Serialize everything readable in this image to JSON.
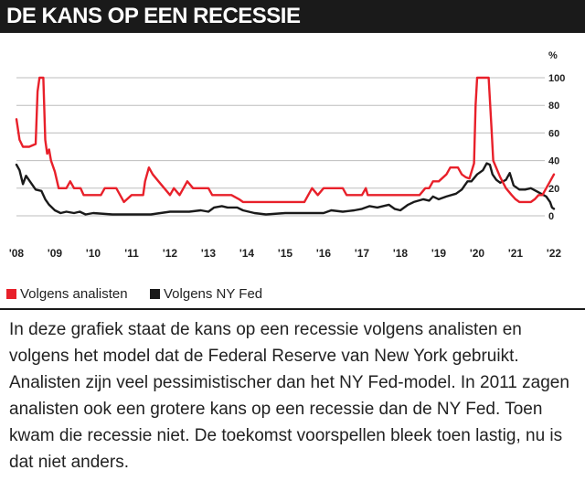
{
  "header": {
    "title": "DE KANS OP EEN RECESSIE"
  },
  "chart_data": {
    "type": "line",
    "title": "DE KANS OP EEN RECESSIE",
    "ylabel": "%",
    "ylim": [
      0,
      100
    ],
    "xlim": [
      2008,
      2022
    ],
    "grid": true,
    "y_ticks": [
      "0",
      "20",
      "40",
      "60",
      "80",
      "100"
    ],
    "x_ticks": [
      "'08",
      "'09",
      "'10",
      "'11",
      "'12",
      "'13",
      "'14",
      "'15",
      "'16",
      "'17",
      "'18",
      "'19",
      "'20",
      "'21",
      "'22"
    ],
    "legend_position": "bottom-left",
    "series": [
      {
        "name": "Volgens analisten",
        "color": "#e8202a",
        "points": [
          [
            2008.0,
            70
          ],
          [
            2008.08,
            55
          ],
          [
            2008.17,
            50
          ],
          [
            2008.33,
            50
          ],
          [
            2008.5,
            52
          ],
          [
            2008.55,
            90
          ],
          [
            2008.6,
            100
          ],
          [
            2008.7,
            100
          ],
          [
            2008.75,
            55
          ],
          [
            2008.8,
            45
          ],
          [
            2008.85,
            48
          ],
          [
            2008.9,
            40
          ],
          [
            2009.0,
            32
          ],
          [
            2009.1,
            20
          ],
          [
            2009.3,
            20
          ],
          [
            2009.4,
            25
          ],
          [
            2009.5,
            20
          ],
          [
            2009.67,
            20
          ],
          [
            2009.75,
            15
          ],
          [
            2010.0,
            15
          ],
          [
            2010.2,
            15
          ],
          [
            2010.3,
            20
          ],
          [
            2010.6,
            20
          ],
          [
            2010.7,
            15
          ],
          [
            2010.8,
            10
          ],
          [
            2011.0,
            15
          ],
          [
            2011.3,
            15
          ],
          [
            2011.35,
            25
          ],
          [
            2011.45,
            35
          ],
          [
            2011.55,
            30
          ],
          [
            2011.7,
            25
          ],
          [
            2011.85,
            20
          ],
          [
            2012.0,
            15
          ],
          [
            2012.1,
            20
          ],
          [
            2012.25,
            15
          ],
          [
            2012.35,
            20
          ],
          [
            2012.45,
            25
          ],
          [
            2012.6,
            20
          ],
          [
            2013.0,
            20
          ],
          [
            2013.1,
            15
          ],
          [
            2013.4,
            15
          ],
          [
            2013.6,
            15
          ],
          [
            2013.8,
            12
          ],
          [
            2013.9,
            10
          ],
          [
            2014.5,
            10
          ],
          [
            2015.0,
            10
          ],
          [
            2015.25,
            10
          ],
          [
            2015.5,
            10
          ],
          [
            2015.6,
            15
          ],
          [
            2015.7,
            20
          ],
          [
            2015.85,
            15
          ],
          [
            2016.0,
            20
          ],
          [
            2016.2,
            20
          ],
          [
            2016.5,
            20
          ],
          [
            2016.6,
            15
          ],
          [
            2016.9,
            15
          ],
          [
            2017.0,
            15
          ],
          [
            2017.1,
            20
          ],
          [
            2017.15,
            15
          ],
          [
            2017.6,
            15
          ],
          [
            2018.0,
            15
          ],
          [
            2018.5,
            15
          ],
          [
            2018.65,
            20
          ],
          [
            2018.75,
            20
          ],
          [
            2018.85,
            25
          ],
          [
            2019.0,
            25
          ],
          [
            2019.2,
            30
          ],
          [
            2019.3,
            35
          ],
          [
            2019.5,
            35
          ],
          [
            2019.6,
            30
          ],
          [
            2019.7,
            28
          ],
          [
            2019.8,
            27
          ],
          [
            2019.92,
            38
          ],
          [
            2019.96,
            80
          ],
          [
            2020.0,
            100
          ],
          [
            2020.3,
            100
          ],
          [
            2020.38,
            60
          ],
          [
            2020.42,
            40
          ],
          [
            2020.6,
            28
          ],
          [
            2020.75,
            20
          ],
          [
            2020.9,
            15
          ],
          [
            2021.0,
            12
          ],
          [
            2021.1,
            10
          ],
          [
            2021.4,
            10
          ],
          [
            2021.5,
            12
          ],
          [
            2021.6,
            15
          ],
          [
            2021.7,
            15
          ],
          [
            2021.8,
            20
          ],
          [
            2021.9,
            25
          ],
          [
            2022.0,
            30
          ]
        ]
      },
      {
        "name": "Volgens NY Fed",
        "color": "#1a1a1a",
        "points": [
          [
            2008.0,
            37
          ],
          [
            2008.08,
            33
          ],
          [
            2008.17,
            23
          ],
          [
            2008.25,
            29
          ],
          [
            2008.35,
            25
          ],
          [
            2008.5,
            19
          ],
          [
            2008.65,
            18
          ],
          [
            2008.75,
            12
          ],
          [
            2008.85,
            8
          ],
          [
            2009.0,
            4
          ],
          [
            2009.15,
            2
          ],
          [
            2009.3,
            3
          ],
          [
            2009.5,
            2
          ],
          [
            2009.65,
            3
          ],
          [
            2009.8,
            1
          ],
          [
            2010.0,
            2
          ],
          [
            2010.5,
            1
          ],
          [
            2011.0,
            1
          ],
          [
            2011.5,
            1
          ],
          [
            2012.0,
            3
          ],
          [
            2012.5,
            3
          ],
          [
            2012.8,
            4
          ],
          [
            2013.0,
            3
          ],
          [
            2013.15,
            6
          ],
          [
            2013.35,
            7
          ],
          [
            2013.5,
            6
          ],
          [
            2013.75,
            6
          ],
          [
            2013.9,
            4
          ],
          [
            2014.2,
            2
          ],
          [
            2014.5,
            1
          ],
          [
            2015.0,
            2
          ],
          [
            2015.5,
            2
          ],
          [
            2016.0,
            2
          ],
          [
            2016.2,
            4
          ],
          [
            2016.5,
            3
          ],
          [
            2016.8,
            4
          ],
          [
            2017.0,
            5
          ],
          [
            2017.2,
            7
          ],
          [
            2017.4,
            6
          ],
          [
            2017.7,
            8
          ],
          [
            2017.85,
            5
          ],
          [
            2018.0,
            4
          ],
          [
            2018.2,
            8
          ],
          [
            2018.35,
            10
          ],
          [
            2018.6,
            12
          ],
          [
            2018.75,
            11
          ],
          [
            2018.85,
            14
          ],
          [
            2019.0,
            12
          ],
          [
            2019.2,
            14
          ],
          [
            2019.45,
            16
          ],
          [
            2019.6,
            19
          ],
          [
            2019.75,
            25
          ],
          [
            2019.85,
            25
          ],
          [
            2020.0,
            30
          ],
          [
            2020.15,
            33
          ],
          [
            2020.25,
            38
          ],
          [
            2020.33,
            37
          ],
          [
            2020.4,
            30
          ],
          [
            2020.5,
            26
          ],
          [
            2020.6,
            24
          ],
          [
            2020.75,
            26
          ],
          [
            2020.85,
            31
          ],
          [
            2020.95,
            22
          ],
          [
            2021.1,
            19
          ],
          [
            2021.25,
            19
          ],
          [
            2021.4,
            20
          ],
          [
            2021.6,
            17
          ],
          [
            2021.8,
            14
          ],
          [
            2021.9,
            10
          ],
          [
            2021.95,
            6
          ],
          [
            2022.0,
            5
          ]
        ]
      }
    ]
  },
  "legend": [
    {
      "label": "Volgens analisten",
      "color": "#e8202a"
    },
    {
      "label": "Volgens NY Fed",
      "color": "#1a1a1a"
    }
  ],
  "description": "In deze grafiek staat de kans op een recessie volgens analisten en volgens het model dat de Federal Reserve van New York gebruikt. Analisten zijn veel pessimistischer dan het NY Fed-model. In 2011 zagen analisten ook een grotere kans op een recessie dan de NY Fed. Toen kwam die recessie niet. De toekomst voorspellen bleek toen lastig, nu is dat niet anders."
}
